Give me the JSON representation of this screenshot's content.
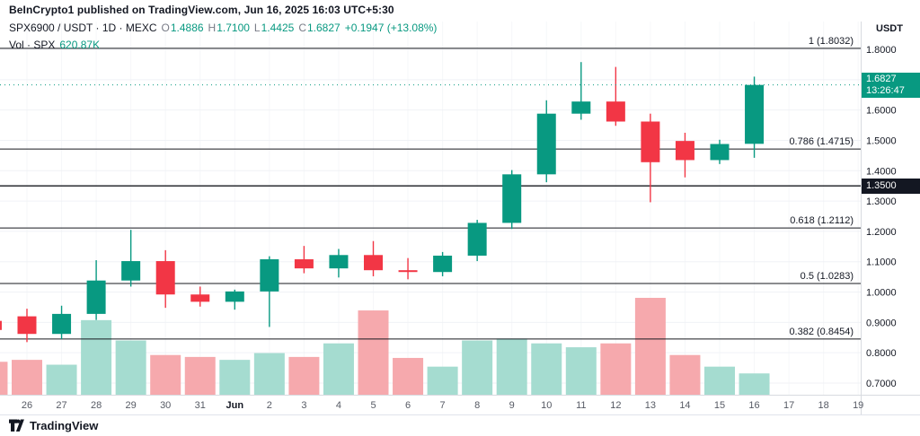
{
  "attribution": "BeInCrypto1 published on TradingView.com, Jun 16, 2025 16:03 UTC+5:30",
  "symbol_row": {
    "title": "SPX6900 / USDT · 1D · MEXC",
    "ohlc": [
      {
        "label": "O",
        "value": "1.4886"
      },
      {
        "label": "H",
        "value": "1.7100"
      },
      {
        "label": "L",
        "value": "1.4425"
      },
      {
        "label": "C",
        "value": "1.6827"
      }
    ],
    "change": "+0.1947 (+13.08%)"
  },
  "volume_row": {
    "label": "Vol · SPX",
    "value": "620.87K"
  },
  "price_axis": {
    "unit": "USDT",
    "ticks": [
      "1.8000",
      "1.7000",
      "1.6000",
      "1.5000",
      "1.4000",
      "1.3000",
      "1.2000",
      "1.1000",
      "1.0000",
      "0.9000",
      "0.8000",
      "0.7000"
    ],
    "current_tag": {
      "price": "1.6827",
      "countdown": "13:26:47"
    },
    "line_tag": "1.3500"
  },
  "footer": {
    "brand": "TradingView"
  },
  "colors": {
    "up": "#089981",
    "down": "#f23645",
    "vol_up": "#a5dcd0",
    "vol_down": "#f6a9ad",
    "grid": "#f0f2f6",
    "vgrid": "#f6f7f9",
    "axis_border": "#d8dbe0",
    "fib_line": "#17191f",
    "text_dark": "#131722",
    "text_gray": "#565a64"
  },
  "chart_data": {
    "type": "candlestick",
    "title": "SPX6900 / USDT · 1D · MEXC",
    "ylabel": "USDT",
    "ylim": [
      0.7,
      1.8
    ],
    "legend_position": "top-left",
    "grid": true,
    "dates": [
      "26",
      "27",
      "28",
      "29",
      "30",
      "31",
      "Jun",
      "2",
      "3",
      "4",
      "5",
      "6",
      "7",
      "8",
      "9",
      "10",
      "11",
      "12",
      "13",
      "14",
      "15",
      "16",
      "17",
      "18",
      "19"
    ],
    "candles": [
      {
        "slot": -1,
        "o": 0.905,
        "h": 0.925,
        "l": 0.86,
        "c": 0.875
      },
      {
        "slot": 0,
        "o": 0.92,
        "h": 0.945,
        "l": 0.835,
        "c": 0.862
      },
      {
        "slot": 1,
        "o": 0.862,
        "h": 0.955,
        "l": 0.845,
        "c": 0.928
      },
      {
        "slot": 2,
        "o": 0.928,
        "h": 1.105,
        "l": 0.908,
        "c": 1.038
      },
      {
        "slot": 3,
        "o": 1.038,
        "h": 1.205,
        "l": 1.018,
        "c": 1.102
      },
      {
        "slot": 4,
        "o": 1.102,
        "h": 1.138,
        "l": 0.948,
        "c": 0.992
      },
      {
        "slot": 5,
        "o": 0.992,
        "h": 1.018,
        "l": 0.952,
        "c": 0.968
      },
      {
        "slot": 6,
        "o": 0.968,
        "h": 1.008,
        "l": 0.942,
        "c": 1.002
      },
      {
        "slot": 7,
        "o": 1.002,
        "h": 1.118,
        "l": 0.885,
        "c": 1.108
      },
      {
        "slot": 8,
        "o": 1.108,
        "h": 1.152,
        "l": 1.062,
        "c": 1.078
      },
      {
        "slot": 9,
        "o": 1.078,
        "h": 1.142,
        "l": 1.048,
        "c": 1.122
      },
      {
        "slot": 10,
        "o": 1.122,
        "h": 1.168,
        "l": 1.052,
        "c": 1.072
      },
      {
        "slot": 11,
        "o": 1.072,
        "h": 1.112,
        "l": 1.042,
        "c": 1.066
      },
      {
        "slot": 12,
        "o": 1.066,
        "h": 1.132,
        "l": 1.052,
        "c": 1.12
      },
      {
        "slot": 13,
        "o": 1.12,
        "h": 1.238,
        "l": 1.102,
        "c": 1.228
      },
      {
        "slot": 14,
        "o": 1.228,
        "h": 1.402,
        "l": 1.208,
        "c": 1.388
      },
      {
        "slot": 15,
        "o": 1.388,
        "h": 1.632,
        "l": 1.362,
        "c": 1.588
      },
      {
        "slot": 16,
        "o": 1.588,
        "h": 1.758,
        "l": 1.568,
        "c": 1.628
      },
      {
        "slot": 17,
        "o": 1.628,
        "h": 1.742,
        "l": 1.548,
        "c": 1.562
      },
      {
        "slot": 18,
        "o": 1.562,
        "h": 1.588,
        "l": 1.296,
        "c": 1.428
      },
      {
        "slot": 19,
        "o": 1.498,
        "h": 1.525,
        "l": 1.378,
        "c": 1.435
      },
      {
        "slot": 20,
        "o": 1.435,
        "h": 1.502,
        "l": 1.422,
        "c": 1.488
      },
      {
        "slot": 21,
        "o": 1.4886,
        "h": 1.71,
        "l": 1.4425,
        "c": 1.6827
      }
    ],
    "volume_rel": [
      0.34,
      0.36,
      0.31,
      0.77,
      0.56,
      0.41,
      0.39,
      0.36,
      0.43,
      0.39,
      0.53,
      0.87,
      0.38,
      0.29,
      0.56,
      0.58,
      0.53,
      0.49,
      0.53,
      1.0,
      0.41,
      0.29,
      0.22
    ],
    "current_volume_label": "620.87K",
    "fib_levels": [
      {
        "label": "1 (1.8032)",
        "value": 1.8032
      },
      {
        "label": "0.786 (1.4715)",
        "value": 1.4715
      },
      {
        "label": "0.618 (1.2112)",
        "value": 1.2112
      },
      {
        "label": "0.5 (1.0283)",
        "value": 1.0283
      },
      {
        "label": "0.382 (0.8454)",
        "value": 0.8454
      }
    ],
    "horizontal_line": 1.35,
    "current_price": 1.6827
  }
}
